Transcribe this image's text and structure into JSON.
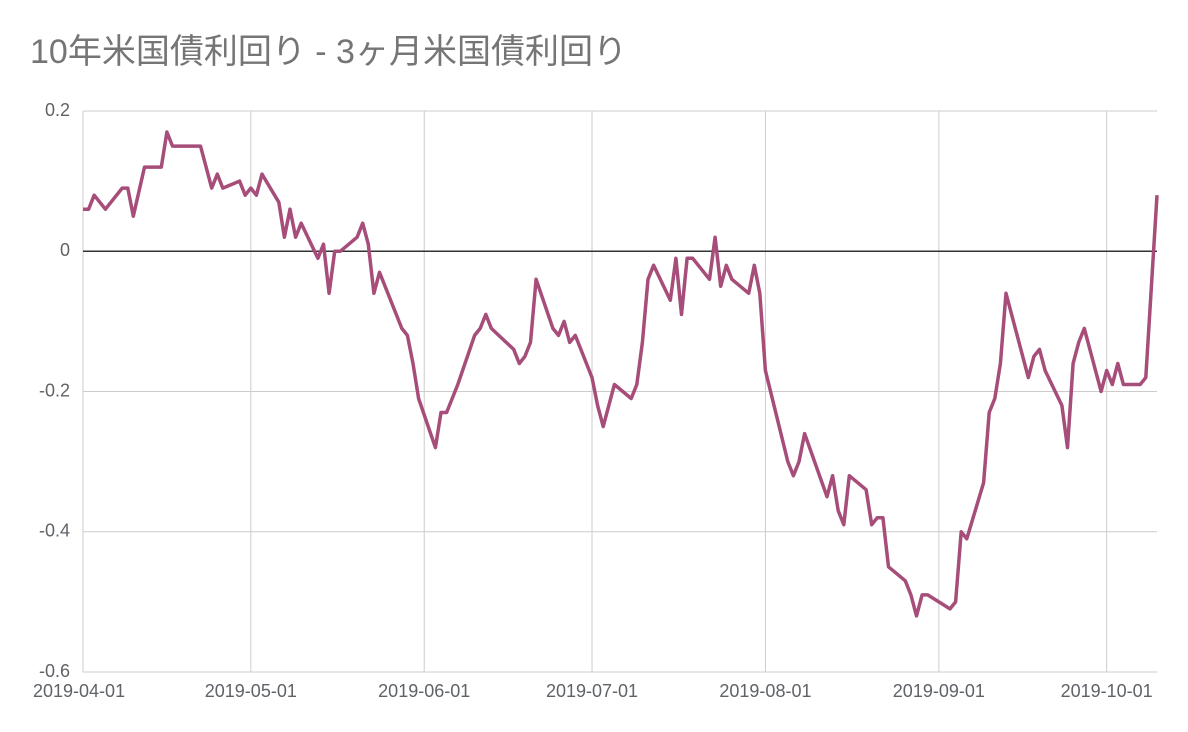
{
  "chart_data": {
    "type": "line",
    "title": "10年米国債利回り - 3ヶ月米国債利回り",
    "color": "#a64d79",
    "x": [
      "2019-04-01",
      "2019-04-02",
      "2019-04-03",
      "2019-04-05",
      "2019-04-08",
      "2019-04-09",
      "2019-04-10",
      "2019-04-12",
      "2019-04-15",
      "2019-04-16",
      "2019-04-17",
      "2019-04-22",
      "2019-04-24",
      "2019-04-25",
      "2019-04-26",
      "2019-04-29",
      "2019-04-30",
      "2019-05-01",
      "2019-05-02",
      "2019-05-03",
      "2019-05-06",
      "2019-05-07",
      "2019-05-08",
      "2019-05-09",
      "2019-05-10",
      "2019-05-13",
      "2019-05-14",
      "2019-05-15",
      "2019-05-16",
      "2019-05-17",
      "2019-05-20",
      "2019-05-21",
      "2019-05-22",
      "2019-05-23",
      "2019-05-24",
      "2019-05-28",
      "2019-05-29",
      "2019-05-30",
      "2019-05-31",
      "2019-06-03",
      "2019-06-04",
      "2019-06-05",
      "2019-06-07",
      "2019-06-10",
      "2019-06-11",
      "2019-06-12",
      "2019-06-13",
      "2019-06-17",
      "2019-06-18",
      "2019-06-19",
      "2019-06-20",
      "2019-06-21",
      "2019-06-24",
      "2019-06-25",
      "2019-06-26",
      "2019-06-27",
      "2019-06-28",
      "2019-07-01",
      "2019-07-02",
      "2019-07-03",
      "2019-07-05",
      "2019-07-08",
      "2019-07-09",
      "2019-07-10",
      "2019-07-11",
      "2019-07-12",
      "2019-07-15",
      "2019-07-16",
      "2019-07-17",
      "2019-07-18",
      "2019-07-19",
      "2019-07-22",
      "2019-07-23",
      "2019-07-24",
      "2019-07-25",
      "2019-07-26",
      "2019-07-29",
      "2019-07-30",
      "2019-07-31",
      "2019-08-01",
      "2019-08-05",
      "2019-08-06",
      "2019-08-07",
      "2019-08-08",
      "2019-08-12",
      "2019-08-13",
      "2019-08-14",
      "2019-08-15",
      "2019-08-16",
      "2019-08-19",
      "2019-08-20",
      "2019-08-21",
      "2019-08-22",
      "2019-08-23",
      "2019-08-26",
      "2019-08-27",
      "2019-08-28",
      "2019-08-29",
      "2019-08-30",
      "2019-09-03",
      "2019-09-04",
      "2019-09-05",
      "2019-09-06",
      "2019-09-09",
      "2019-09-10",
      "2019-09-11",
      "2019-09-12",
      "2019-09-13",
      "2019-09-17",
      "2019-09-18",
      "2019-09-19",
      "2019-09-20",
      "2019-09-23",
      "2019-09-24",
      "2019-09-25",
      "2019-09-26",
      "2019-09-27",
      "2019-09-30",
      "2019-10-01",
      "2019-10-02",
      "2019-10-03",
      "2019-10-04",
      "2019-10-07",
      "2019-10-08",
      "2019-10-10"
    ],
    "values": [
      0.06,
      0.06,
      0.08,
      0.06,
      0.09,
      0.09,
      0.05,
      0.12,
      0.12,
      0.17,
      0.15,
      0.15,
      0.09,
      0.11,
      0.09,
      0.1,
      0.08,
      0.09,
      0.08,
      0.11,
      0.07,
      0.02,
      0.06,
      0.02,
      0.04,
      -0.01,
      0.01,
      -0.06,
      0,
      0,
      0.02,
      0.04,
      0.01,
      -0.06,
      -0.03,
      -0.11,
      -0.12,
      -0.16,
      -0.21,
      -0.28,
      -0.23,
      -0.23,
      -0.19,
      -0.12,
      -0.11,
      -0.09,
      -0.11,
      -0.14,
      -0.16,
      -0.15,
      -0.13,
      -0.04,
      -0.11,
      -0.12,
      -0.1,
      -0.13,
      -0.12,
      -0.18,
      -0.22,
      -0.25,
      -0.19,
      -0.21,
      -0.19,
      -0.13,
      -0.04,
      -0.02,
      -0.07,
      -0.01,
      -0.09,
      -0.01,
      -0.01,
      -0.04,
      0.02,
      -0.05,
      -0.02,
      -0.04,
      -0.06,
      -0.02,
      -0.06,
      -0.17,
      -0.3,
      -0.32,
      -0.3,
      -0.26,
      -0.35,
      -0.32,
      -0.37,
      -0.39,
      -0.32,
      -0.34,
      -0.39,
      -0.38,
      -0.38,
      -0.45,
      -0.47,
      -0.49,
      -0.52,
      -0.49,
      -0.49,
      -0.51,
      -0.5,
      -0.4,
      -0.41,
      -0.33,
      -0.23,
      -0.21,
      -0.16,
      -0.06,
      -0.18,
      -0.15,
      -0.14,
      -0.17,
      -0.22,
      -0.28,
      -0.16,
      -0.13,
      -0.11,
      -0.2,
      -0.17,
      -0.19,
      -0.16,
      -0.19,
      -0.19,
      -0.18,
      0.08
    ],
    "xlim": [
      "2019-04-01",
      "2019-10-10"
    ],
    "xticks": [
      "2019-04-01",
      "2019-05-01",
      "2019-06-01",
      "2019-07-01",
      "2019-08-01",
      "2019-09-01",
      "2019-10-01"
    ],
    "ylim": [
      -0.6,
      0.2
    ],
    "yticks": [
      0.2,
      0,
      -0.2,
      -0.4,
      -0.6
    ],
    "grid": true
  }
}
